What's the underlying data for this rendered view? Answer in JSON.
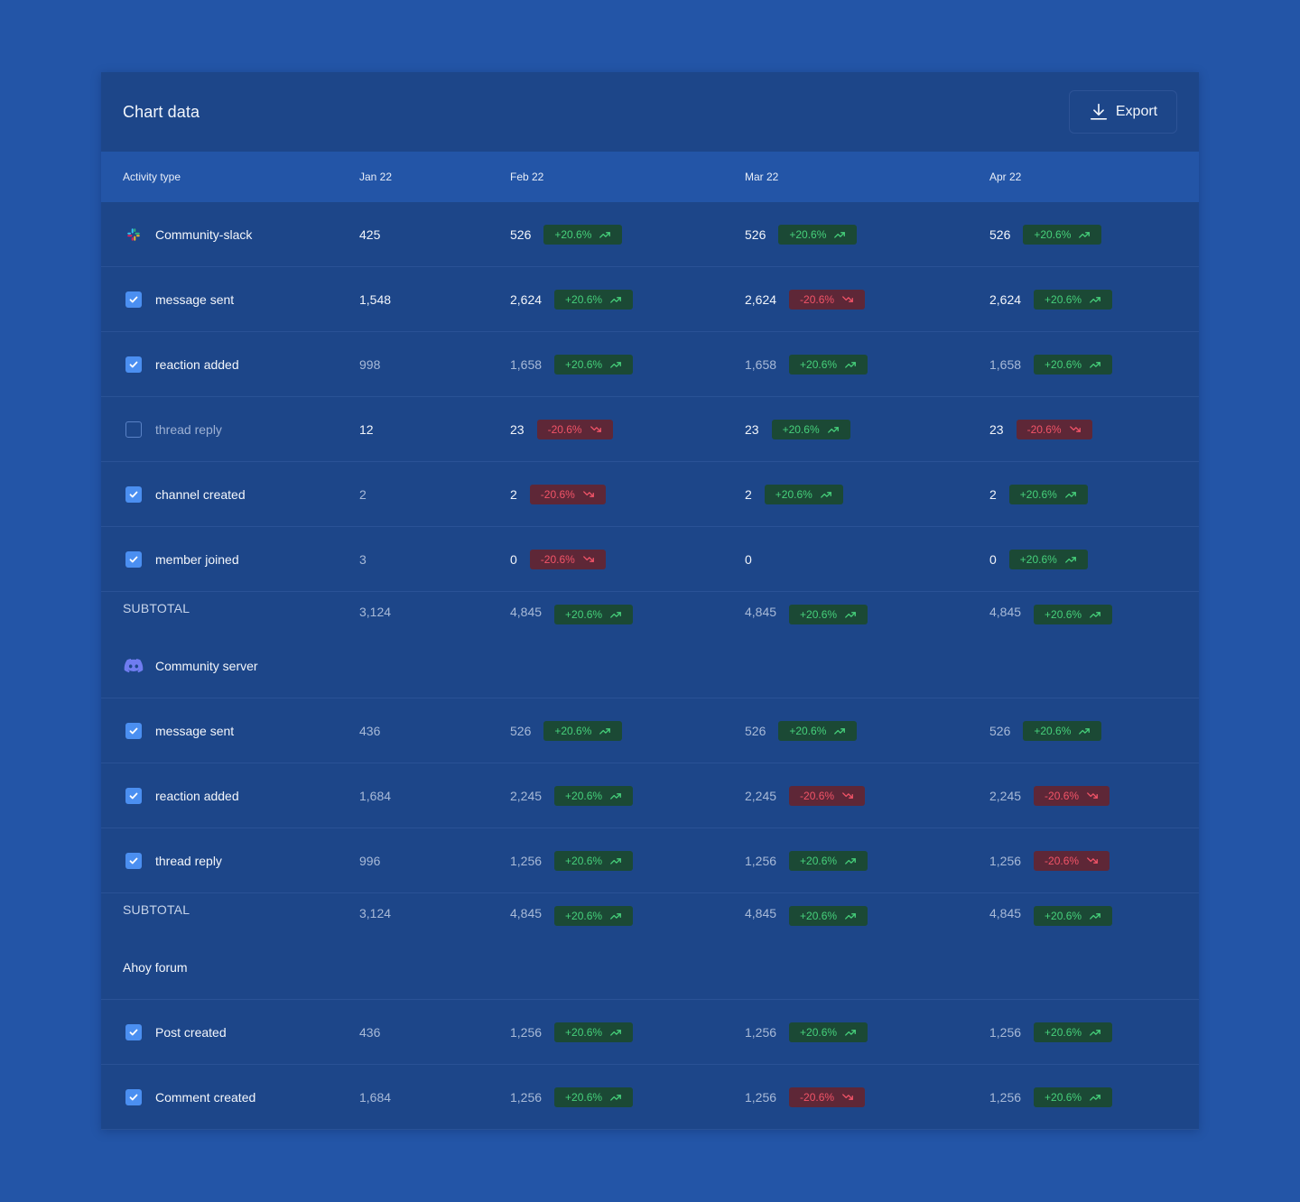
{
  "header": {
    "title": "Chart data",
    "export_label": "Export"
  },
  "columns": [
    "Activity type",
    "Jan 22",
    "Feb 22",
    "Mar 22",
    "Apr 22"
  ],
  "colors": {
    "page_bg": "#2355a7",
    "panel_bg": "#1d4689",
    "up": "#46d07b",
    "down": "#f25468",
    "checkbox": "#4b8ff1"
  },
  "rows": [
    {
      "type": "group",
      "icon": "slack-icon",
      "label": "Community-slack",
      "jan": "425",
      "feb": {
        "v": "526",
        "c": "+20.6%",
        "d": "up"
      },
      "mar": {
        "v": "526",
        "c": "+20.6%",
        "d": "up"
      },
      "apr": {
        "v": "526",
        "c": "+20.6%",
        "d": "up"
      }
    },
    {
      "type": "item",
      "checked": true,
      "label": "message sent",
      "jan": "1,548",
      "bright": true,
      "feb": {
        "v": "2,624",
        "c": "+20.6%",
        "d": "up"
      },
      "mar": {
        "v": "2,624",
        "c": "-20.6%",
        "d": "down"
      },
      "apr": {
        "v": "2,624",
        "c": "+20.6%",
        "d": "up"
      }
    },
    {
      "type": "item",
      "checked": true,
      "label": "reaction added",
      "jan": "998",
      "bright": false,
      "feb": {
        "v": "1,658",
        "c": "+20.6%",
        "d": "up"
      },
      "mar": {
        "v": "1,658",
        "c": "+20.6%",
        "d": "up"
      },
      "apr": {
        "v": "1,658",
        "c": "+20.6%",
        "d": "up"
      }
    },
    {
      "type": "item",
      "checked": false,
      "label": "thread reply",
      "jan": "12",
      "bright": true,
      "feb": {
        "v": "23",
        "c": "-20.6%",
        "d": "down"
      },
      "mar": {
        "v": "23",
        "c": "+20.6%",
        "d": "up"
      },
      "apr": {
        "v": "23",
        "c": "-20.6%",
        "d": "down"
      }
    },
    {
      "type": "item",
      "checked": true,
      "label": "channel created",
      "jan": "2",
      "bright": false,
      "later_bright": true,
      "feb": {
        "v": "2",
        "c": "-20.6%",
        "d": "down"
      },
      "mar": {
        "v": "2",
        "c": "+20.6%",
        "d": "up"
      },
      "apr": {
        "v": "2",
        "c": "+20.6%",
        "d": "up"
      }
    },
    {
      "type": "item",
      "checked": true,
      "label": "member joined",
      "jan": "3",
      "bright": false,
      "later_bright": true,
      "feb": {
        "v": "0",
        "c": "-20.6%",
        "d": "down"
      },
      "mar": {
        "v": "0"
      },
      "apr": {
        "v": "0",
        "c": "+20.6%",
        "d": "up"
      }
    },
    {
      "type": "subtotal",
      "label": "SUBTOTAL",
      "jan": "3,124",
      "feb": {
        "v": "4,845",
        "c": "+20.6%",
        "d": "up"
      },
      "mar": {
        "v": "4,845",
        "c": "+20.6%",
        "d": "up"
      },
      "apr": {
        "v": "4,845",
        "c": "+20.6%",
        "d": "up"
      }
    },
    {
      "type": "group",
      "icon": "discord-icon",
      "label": "Community server"
    },
    {
      "type": "item",
      "checked": true,
      "label": "message sent",
      "jan": "436",
      "bright": false,
      "feb": {
        "v": "526",
        "c": "+20.6%",
        "d": "up"
      },
      "mar": {
        "v": "526",
        "c": "+20.6%",
        "d": "up"
      },
      "apr": {
        "v": "526",
        "c": "+20.6%",
        "d": "up"
      }
    },
    {
      "type": "item",
      "checked": true,
      "label": "reaction added",
      "jan": "1,684",
      "bright": false,
      "feb": {
        "v": "2,245",
        "c": "+20.6%",
        "d": "up"
      },
      "mar": {
        "v": "2,245",
        "c": "-20.6%",
        "d": "down"
      },
      "apr": {
        "v": "2,245",
        "c": "-20.6%",
        "d": "down"
      }
    },
    {
      "type": "item",
      "checked": true,
      "label": "thread reply",
      "jan": "996",
      "bright": false,
      "feb": {
        "v": "1,256",
        "c": "+20.6%",
        "d": "up"
      },
      "mar": {
        "v": "1,256",
        "c": "+20.6%",
        "d": "up"
      },
      "apr": {
        "v": "1,256",
        "c": "-20.6%",
        "d": "down"
      }
    },
    {
      "type": "subtotal",
      "label": "SUBTOTAL",
      "jan": "3,124",
      "feb": {
        "v": "4,845",
        "c": "+20.6%",
        "d": "up"
      },
      "mar": {
        "v": "4,845",
        "c": "+20.6%",
        "d": "up"
      },
      "apr": {
        "v": "4,845",
        "c": "+20.6%",
        "d": "up"
      }
    },
    {
      "type": "group",
      "icon": "",
      "label": "Ahoy forum"
    },
    {
      "type": "item",
      "checked": true,
      "label": "Post created",
      "jan": "436",
      "bright": false,
      "feb": {
        "v": "1,256",
        "c": "+20.6%",
        "d": "up"
      },
      "mar": {
        "v": "1,256",
        "c": "+20.6%",
        "d": "up"
      },
      "apr": {
        "v": "1,256",
        "c": "+20.6%",
        "d": "up"
      }
    },
    {
      "type": "item",
      "checked": true,
      "label": "Comment created",
      "jan": "1,684",
      "bright": false,
      "feb": {
        "v": "1,256",
        "c": "+20.6%",
        "d": "up"
      },
      "mar": {
        "v": "1,256",
        "c": "-20.6%",
        "d": "down"
      },
      "apr": {
        "v": "1,256",
        "c": "+20.6%",
        "d": "up"
      }
    }
  ]
}
